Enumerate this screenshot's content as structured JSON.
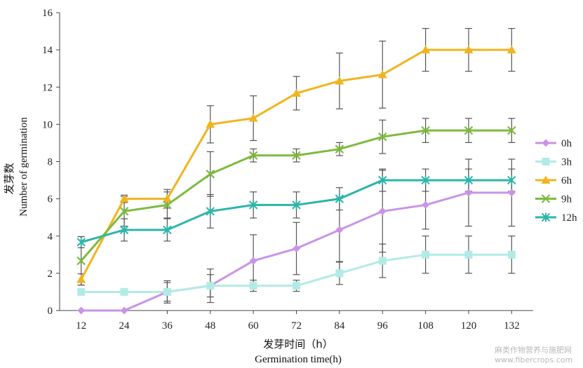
{
  "chart_data": {
    "type": "line",
    "x": [
      12,
      24,
      36,
      48,
      60,
      72,
      84,
      96,
      108,
      120,
      132
    ],
    "xlim": [
      6,
      138
    ],
    "ylim": [
      0,
      16
    ],
    "xticks": [
      "12",
      "24",
      "36",
      "48",
      "60",
      "72",
      "84",
      "96",
      "108",
      "120",
      "132"
    ],
    "yticks": [
      "0",
      "2",
      "4",
      "6",
      "8",
      "10",
      "12",
      "14",
      "16"
    ],
    "xlabel_cn": "发芽时间（h）",
    "xlabel_en": "Germination time(h)",
    "ylabel_cn": "发芽数",
    "ylabel_en": "Number of germination",
    "grid": false,
    "legend_position": "right",
    "series": [
      {
        "name": "0h",
        "color": "#c994e6",
        "marker": "diamond",
        "values": [
          0,
          0,
          1,
          1.33,
          2.67,
          3.33,
          4.33,
          5.33,
          5.67,
          6.33,
          6.33
        ],
        "errors": [
          0,
          0,
          0.5,
          0.9,
          1.4,
          1.4,
          1.7,
          2.2,
          1.3,
          1.8,
          1.8
        ]
      },
      {
        "name": "3h",
        "color": "#b2ebe6",
        "marker": "square",
        "values": [
          1,
          1,
          1,
          1.33,
          1.33,
          1.33,
          2,
          2.67,
          3,
          3,
          3
        ],
        "errors": [
          0,
          0,
          0.6,
          0.6,
          0.3,
          0.3,
          0.6,
          0.9,
          1,
          1,
          1
        ]
      },
      {
        "name": "6h",
        "color": "#f0b41e",
        "marker": "triangle",
        "values": [
          1.67,
          6,
          6,
          10,
          10.33,
          11.67,
          12.33,
          12.67,
          14,
          14,
          14
        ],
        "errors": [
          0.3,
          0.2,
          0.5,
          1,
          1.2,
          0.9,
          1.5,
          1.8,
          1.15,
          1.15,
          1.15
        ]
      },
      {
        "name": "9h",
        "color": "#7dba3e",
        "marker": "x",
        "values": [
          2.67,
          5.33,
          5.67,
          7.33,
          8.33,
          8.33,
          8.67,
          9.33,
          9.67,
          9.67,
          9.67
        ],
        "errors": [
          1.3,
          0.8,
          0.7,
          1.2,
          0.35,
          0.35,
          0.35,
          0.9,
          0.65,
          0.65,
          0.65
        ]
      },
      {
        "name": "12h",
        "color": "#2db5a8",
        "marker": "star",
        "values": [
          3.67,
          4.33,
          4.33,
          5.33,
          5.67,
          5.67,
          6,
          7,
          7,
          7,
          7
        ],
        "errors": [
          0.3,
          0.6,
          0.6,
          0.9,
          0.7,
          0.7,
          0.6,
          0.6,
          0.6,
          0.6,
          0.6
        ]
      }
    ]
  },
  "watermark": {
    "line1": "麻类作物营养与施肥网",
    "line2": "www.fibercrops.com"
  }
}
